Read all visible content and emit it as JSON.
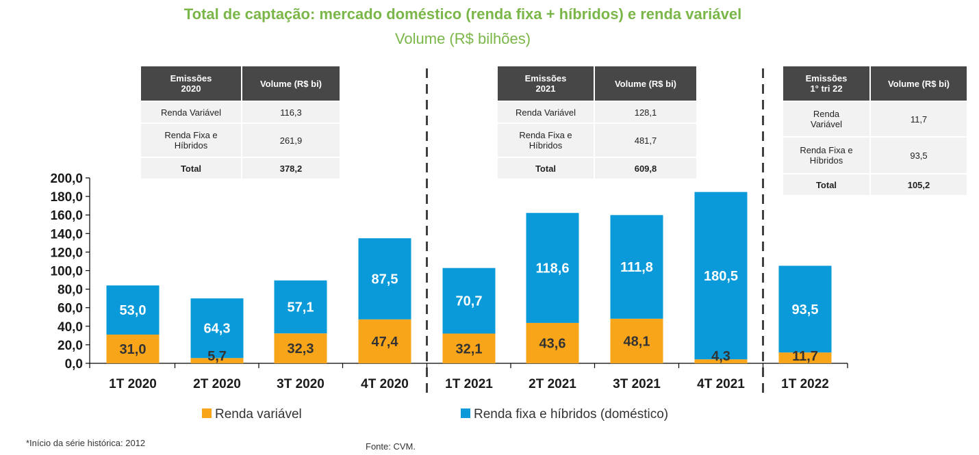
{
  "header": {
    "title": "Total de captação: mercado doméstico (renda fixa + híbridos) e renda variável",
    "subtitle": "Volume (R$ bilhões)"
  },
  "tables": [
    {
      "head1": "Emissões",
      "head2": "2020",
      "col2": "Volume (R$ bi)",
      "rv_label": "Renda Variável",
      "rv_value": "116,3",
      "rf_label1": "Renda Fixa e",
      "rf_label2": "Híbridos",
      "rf_value": "261,9",
      "total_label": "Total",
      "total_value": "378,2"
    },
    {
      "head1": "Emissões",
      "head2": "2021",
      "col2": "Volume (R$ bi)",
      "rv_label": "Renda Variável",
      "rv_value": "128,1",
      "rf_label1": "Renda Fixa e",
      "rf_label2": "Híbridos",
      "rf_value": "481,7",
      "total_label": "Total",
      "total_value": "609,8"
    },
    {
      "head1": "Emissões",
      "head2": "1° tri 22",
      "col2": "Volume (R$ bi)",
      "rv_label1": "Renda",
      "rv_label2": "Variável",
      "rv_value": "11,7",
      "rf_label1": "Renda Fixa e",
      "rf_label2": "Híbridos",
      "rf_value": "93,5",
      "total_label": "Total",
      "total_value": "105,2"
    }
  ],
  "chart_data": {
    "type": "bar",
    "stacked": true,
    "title": "Total de captação: mercado doméstico (renda fixa + híbridos) e renda variável",
    "subtitle": "Volume (R$ bilhões)",
    "categories": [
      "1T 2020",
      "2T 2020",
      "3T 2020",
      "4T 2020",
      "1T 2021",
      "2T 2021",
      "3T 2021",
      "4T 2021",
      "1T 2022"
    ],
    "series": [
      {
        "name": "Renda variável",
        "color": "#f9a51a",
        "values": [
          31.0,
          5.7,
          32.3,
          47.4,
          32.1,
          43.6,
          48.1,
          4.3,
          11.7
        ],
        "labels": [
          "31,0",
          "5,7",
          "32,3",
          "47,4",
          "32,1",
          "43,6",
          "48,1",
          "4,3",
          "11,7"
        ]
      },
      {
        "name": "Renda fixa e híbridos (doméstico)",
        "color": "#0a9ad9",
        "values": [
          53.0,
          64.3,
          57.1,
          87.5,
          70.7,
          118.6,
          111.8,
          180.5,
          93.5
        ],
        "labels": [
          "53,0",
          "64,3",
          "57,1",
          "87,5",
          "70,7",
          "118,6",
          "111,8",
          "180,5",
          "93,5"
        ]
      }
    ],
    "yticks": [
      "0,0",
      "20,0",
      "40,0",
      "60,0",
      "80,0",
      "100,0",
      "120,0",
      "140,0",
      "160,0",
      "180,0",
      "200,0"
    ],
    "ylim": [
      0,
      200
    ],
    "separators_after": [
      "4T 2020",
      "4T 2021"
    ],
    "legend": "bottom",
    "xlabel": "",
    "ylabel": ""
  },
  "footer": {
    "note": "*Início da série histórica:  2012",
    "source": "Fonte: CVM."
  }
}
